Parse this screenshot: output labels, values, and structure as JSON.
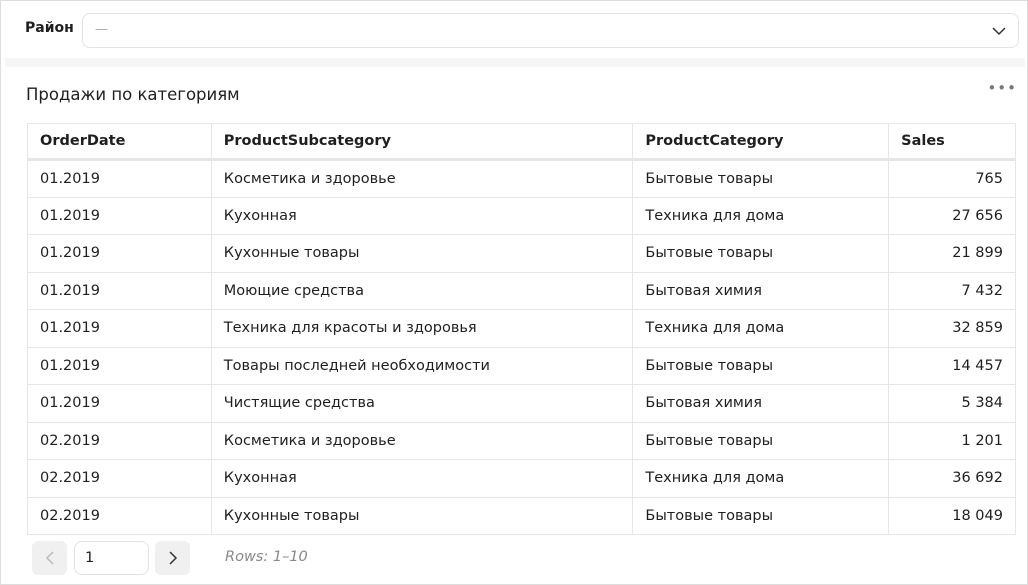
{
  "filter": {
    "label": "Район",
    "value": "—"
  },
  "widget": {
    "title": "Продажи по категориям",
    "more": "•••"
  },
  "table": {
    "headers": [
      "OrderDate",
      "ProductSubcategory",
      "ProductCategory",
      "Sales"
    ],
    "rows": [
      [
        "01.2019",
        "Косметика и здоровье",
        "Бытовые товары",
        "765"
      ],
      [
        "01.2019",
        "Кухонная",
        "Техника для дома",
        "27 656"
      ],
      [
        "01.2019",
        "Кухонные товары",
        "Бытовые товары",
        "21 899"
      ],
      [
        "01.2019",
        "Моющие средства",
        "Бытовая химия",
        "7 432"
      ],
      [
        "01.2019",
        "Техника для красоты и здоровья",
        "Техника для дома",
        "32 859"
      ],
      [
        "01.2019",
        "Товары последней необходимости",
        "Бытовые товары",
        "14 457"
      ],
      [
        "01.2019",
        "Чистящие средства",
        "Бытовая химия",
        "5 384"
      ],
      [
        "02.2019",
        "Косметика и здоровье",
        "Бытовые товары",
        "1 201"
      ],
      [
        "02.2019",
        "Кухонная",
        "Техника для дома",
        "36 692"
      ],
      [
        "02.2019",
        "Кухонные товары",
        "Бытовые товары",
        "18 049"
      ]
    ]
  },
  "pagination": {
    "page": "1",
    "rows_label": "Rows: 1–10"
  }
}
